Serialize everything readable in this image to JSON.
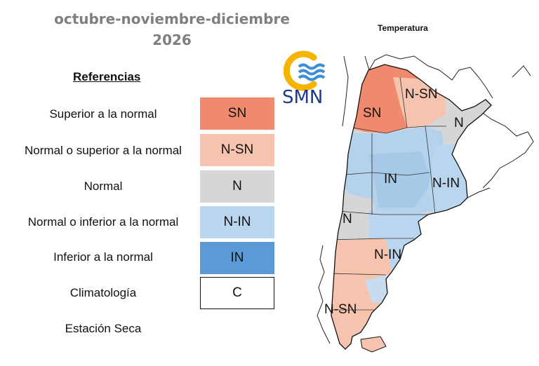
{
  "title": {
    "line1": "octubre-noviembre-diciembre",
    "line2": "2026"
  },
  "map_title": "Temperatura",
  "logo": {
    "text": "SMN",
    "icon": "smn-logo-icon"
  },
  "legend": {
    "heading": "Referencias",
    "items": [
      {
        "label": "Superior a la normal",
        "code": "SN",
        "color": "#f08a6e"
      },
      {
        "label": "Normal o superior a la normal",
        "code": "N-SN",
        "color": "#f6c4ae"
      },
      {
        "label": "Normal",
        "code": "N",
        "color": "#d6d6d6"
      },
      {
        "label": "Normal o inferior a la normal",
        "code": "N-IN",
        "color": "#bad6ee"
      },
      {
        "label": "Inferior a la normal",
        "code": "IN",
        "color": "#5b9bd5"
      },
      {
        "label": "Climatología",
        "code": "C",
        "color": "#ffffff"
      },
      {
        "label": "Estación Seca",
        "code": "",
        "color": ""
      }
    ]
  },
  "regions": [
    {
      "code": "N-SN",
      "area": "noroeste-norte"
    },
    {
      "code": "SN",
      "area": "noroeste"
    },
    {
      "code": "N",
      "area": "noreste"
    },
    {
      "code": "IN",
      "area": "centro"
    },
    {
      "code": "N-IN",
      "area": "litoral"
    },
    {
      "code": "N",
      "area": "cuyo-norpatagonia"
    },
    {
      "code": "N-IN",
      "area": "patagonia-este"
    },
    {
      "code": "N-SN",
      "area": "patagonia-sur"
    }
  ]
}
